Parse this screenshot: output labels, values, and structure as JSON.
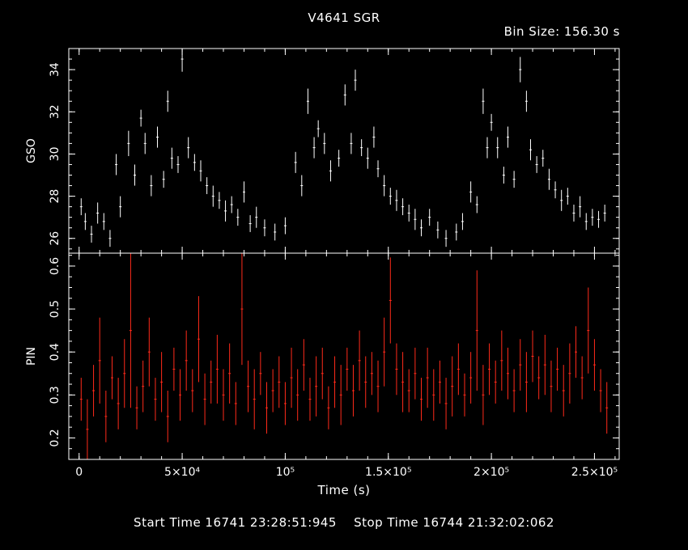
{
  "header": {
    "title": "V4641 SGR",
    "bin_size": "Bin Size: 156.30 s"
  },
  "footer": {
    "start_label": "Start Time 16741 23:28:51:945",
    "stop_label": "Stop Time 16744 21:32:02:062"
  },
  "colors": {
    "gso": "#ffffff",
    "pin": "#ff2a1a",
    "frame": "#ffffff",
    "background": "#000000"
  },
  "chart_data": [
    {
      "type": "scatter",
      "panel": "top",
      "title": "V4641 SGR",
      "ylabel": "GSO",
      "xlabel": "",
      "xlim": [
        -5000,
        262000
      ],
      "ylim": [
        25.3,
        35.0
      ],
      "yticks": [
        26,
        28,
        30,
        32,
        34
      ],
      "errorbars": true,
      "series": [
        {
          "color": "#ffffff",
          "points": [
            [
              1000,
              27.5,
              0.4
            ],
            [
              3000,
              26.8,
              0.4
            ],
            [
              6000,
              26.2,
              0.4
            ],
            [
              9000,
              27.2,
              0.5
            ],
            [
              12000,
              26.8,
              0.4
            ],
            [
              15000,
              26.0,
              0.4
            ],
            [
              18000,
              29.5,
              0.5
            ],
            [
              20000,
              27.5,
              0.5
            ],
            [
              24000,
              30.5,
              0.6
            ],
            [
              27000,
              29.0,
              0.5
            ],
            [
              30000,
              31.7,
              0.4
            ],
            [
              32000,
              30.5,
              0.5
            ],
            [
              35000,
              28.5,
              0.5
            ],
            [
              38000,
              30.8,
              0.5
            ],
            [
              41000,
              28.8,
              0.4
            ],
            [
              43000,
              32.5,
              0.5
            ],
            [
              45000,
              29.8,
              0.5
            ],
            [
              48000,
              29.5,
              0.4
            ],
            [
              50000,
              34.5,
              0.6
            ],
            [
              53000,
              30.3,
              0.5
            ],
            [
              56000,
              29.6,
              0.4
            ],
            [
              59000,
              29.2,
              0.5
            ],
            [
              62000,
              28.5,
              0.4
            ],
            [
              65000,
              28.0,
              0.5
            ],
            [
              68000,
              27.8,
              0.4
            ],
            [
              71000,
              27.3,
              0.5
            ],
            [
              74000,
              27.6,
              0.4
            ],
            [
              77000,
              27.0,
              0.4
            ],
            [
              80000,
              28.2,
              0.5
            ],
            [
              83000,
              26.7,
              0.4
            ],
            [
              86000,
              27.0,
              0.5
            ],
            [
              90000,
              26.5,
              0.4
            ],
            [
              95000,
              26.3,
              0.4
            ],
            [
              100000,
              26.6,
              0.4
            ],
            [
              105000,
              29.6,
              0.5
            ],
            [
              108000,
              28.5,
              0.5
            ],
            [
              111000,
              32.5,
              0.6
            ],
            [
              114000,
              30.3,
              0.5
            ],
            [
              116000,
              31.2,
              0.4
            ],
            [
              119000,
              30.5,
              0.5
            ],
            [
              122000,
              29.2,
              0.5
            ],
            [
              126000,
              29.8,
              0.4
            ],
            [
              129000,
              32.8,
              0.5
            ],
            [
              132000,
              30.5,
              0.5
            ],
            [
              134000,
              33.5,
              0.5
            ],
            [
              137000,
              30.3,
              0.4
            ],
            [
              140000,
              29.8,
              0.5
            ],
            [
              143000,
              30.8,
              0.5
            ],
            [
              145000,
              29.3,
              0.4
            ],
            [
              148000,
              28.5,
              0.5
            ],
            [
              151000,
              28.0,
              0.4
            ],
            [
              154000,
              27.8,
              0.5
            ],
            [
              157000,
              27.5,
              0.4
            ],
            [
              160000,
              27.2,
              0.4
            ],
            [
              163000,
              26.9,
              0.5
            ],
            [
              166000,
              26.5,
              0.4
            ],
            [
              170000,
              27.0,
              0.4
            ],
            [
              174000,
              26.4,
              0.4
            ],
            [
              178000,
              26.0,
              0.4
            ],
            [
              183000,
              26.3,
              0.4
            ],
            [
              186000,
              26.8,
              0.4
            ],
            [
              190000,
              28.2,
              0.5
            ],
            [
              193000,
              27.6,
              0.4
            ],
            [
              196000,
              32.5,
              0.6
            ],
            [
              198000,
              30.3,
              0.5
            ],
            [
              200000,
              31.5,
              0.4
            ],
            [
              203000,
              30.3,
              0.5
            ],
            [
              206000,
              29.0,
              0.4
            ],
            [
              208000,
              30.8,
              0.5
            ],
            [
              211000,
              28.8,
              0.4
            ],
            [
              214000,
              34.0,
              0.6
            ],
            [
              217000,
              32.5,
              0.5
            ],
            [
              219000,
              30.2,
              0.5
            ],
            [
              222000,
              29.5,
              0.4
            ],
            [
              225000,
              29.8,
              0.4
            ],
            [
              228000,
              28.8,
              0.5
            ],
            [
              231000,
              28.3,
              0.4
            ],
            [
              234000,
              27.8,
              0.5
            ],
            [
              237000,
              28.0,
              0.4
            ],
            [
              240000,
              27.2,
              0.4
            ],
            [
              243000,
              27.5,
              0.5
            ],
            [
              246000,
              26.8,
              0.4
            ],
            [
              249000,
              27.0,
              0.4
            ],
            [
              252000,
              26.9,
              0.4
            ],
            [
              255000,
              27.2,
              0.4
            ]
          ]
        }
      ]
    },
    {
      "type": "scatter",
      "panel": "bottom",
      "ylabel": "PIN",
      "xlabel": "Time (s)",
      "xlim": [
        -5000,
        262000
      ],
      "ylim": [
        0.15,
        0.63
      ],
      "yticks": [
        0.2,
        0.3,
        0.4,
        0.5,
        0.6
      ],
      "xticks": [
        0,
        50000,
        100000,
        150000,
        200000,
        250000
      ],
      "xticklabels": [
        "0",
        "5×10⁴",
        "10⁵",
        "1.5×10⁵",
        "2×10⁵",
        "2.5×10⁵"
      ],
      "errorbars": true,
      "series": [
        {
          "color": "#ff2a1a",
          "points": [
            [
              1000,
              0.29,
              0.05
            ],
            [
              4000,
              0.22,
              0.07
            ],
            [
              7000,
              0.31,
              0.06
            ],
            [
              10000,
              0.38,
              0.1
            ],
            [
              13000,
              0.25,
              0.06
            ],
            [
              16000,
              0.34,
              0.05
            ],
            [
              19000,
              0.28,
              0.06
            ],
            [
              22000,
              0.35,
              0.08
            ],
            [
              25000,
              0.45,
              0.18
            ],
            [
              28000,
              0.27,
              0.05
            ],
            [
              31000,
              0.32,
              0.06
            ],
            [
              34000,
              0.4,
              0.08
            ],
            [
              37000,
              0.29,
              0.05
            ],
            [
              40000,
              0.33,
              0.07
            ],
            [
              43000,
              0.25,
              0.06
            ],
            [
              46000,
              0.36,
              0.05
            ],
            [
              49000,
              0.3,
              0.06
            ],
            [
              52000,
              0.38,
              0.07
            ],
            [
              55000,
              0.31,
              0.05
            ],
            [
              58000,
              0.43,
              0.1
            ],
            [
              61000,
              0.29,
              0.06
            ],
            [
              64000,
              0.33,
              0.05
            ],
            [
              67000,
              0.36,
              0.08
            ],
            [
              70000,
              0.3,
              0.06
            ],
            [
              73000,
              0.35,
              0.07
            ],
            [
              76000,
              0.28,
              0.05
            ],
            [
              79000,
              0.5,
              0.13
            ],
            [
              82000,
              0.32,
              0.06
            ],
            [
              85000,
              0.29,
              0.07
            ],
            [
              88000,
              0.35,
              0.05
            ],
            [
              91000,
              0.27,
              0.06
            ],
            [
              94000,
              0.31,
              0.05
            ],
            [
              97000,
              0.33,
              0.06
            ],
            [
              100000,
              0.28,
              0.05
            ],
            [
              103000,
              0.34,
              0.07
            ],
            [
              106000,
              0.3,
              0.06
            ],
            [
              109000,
              0.37,
              0.06
            ],
            [
              112000,
              0.29,
              0.05
            ],
            [
              115000,
              0.32,
              0.07
            ],
            [
              118000,
              0.35,
              0.06
            ],
            [
              121000,
              0.27,
              0.05
            ],
            [
              124000,
              0.33,
              0.06
            ],
            [
              127000,
              0.3,
              0.07
            ],
            [
              130000,
              0.36,
              0.05
            ],
            [
              133000,
              0.31,
              0.06
            ],
            [
              136000,
              0.38,
              0.07
            ],
            [
              139000,
              0.33,
              0.06
            ],
            [
              142000,
              0.35,
              0.05
            ],
            [
              145000,
              0.32,
              0.06
            ],
            [
              148000,
              0.4,
              0.08
            ],
            [
              151000,
              0.52,
              0.1
            ],
            [
              154000,
              0.36,
              0.06
            ],
            [
              157000,
              0.33,
              0.07
            ],
            [
              160000,
              0.31,
              0.05
            ],
            [
              163000,
              0.35,
              0.06
            ],
            [
              166000,
              0.29,
              0.05
            ],
            [
              169000,
              0.34,
              0.07
            ],
            [
              172000,
              0.3,
              0.06
            ],
            [
              175000,
              0.33,
              0.05
            ],
            [
              178000,
              0.28,
              0.06
            ],
            [
              181000,
              0.32,
              0.07
            ],
            [
              184000,
              0.36,
              0.06
            ],
            [
              187000,
              0.3,
              0.05
            ],
            [
              190000,
              0.34,
              0.06
            ],
            [
              193000,
              0.45,
              0.14
            ],
            [
              196000,
              0.3,
              0.07
            ],
            [
              199000,
              0.36,
              0.06
            ],
            [
              202000,
              0.33,
              0.05
            ],
            [
              205000,
              0.38,
              0.07
            ],
            [
              208000,
              0.35,
              0.06
            ],
            [
              211000,
              0.31,
              0.05
            ],
            [
              214000,
              0.37,
              0.06
            ],
            [
              217000,
              0.33,
              0.07
            ],
            [
              220000,
              0.39,
              0.06
            ],
            [
              223000,
              0.34,
              0.05
            ],
            [
              226000,
              0.37,
              0.07
            ],
            [
              229000,
              0.32,
              0.06
            ],
            [
              232000,
              0.36,
              0.05
            ],
            [
              235000,
              0.31,
              0.06
            ],
            [
              238000,
              0.35,
              0.07
            ],
            [
              241000,
              0.4,
              0.06
            ],
            [
              244000,
              0.34,
              0.05
            ],
            [
              247000,
              0.45,
              0.1
            ],
            [
              250000,
              0.37,
              0.06
            ],
            [
              253000,
              0.31,
              0.05
            ],
            [
              256000,
              0.27,
              0.06
            ]
          ]
        }
      ]
    }
  ]
}
